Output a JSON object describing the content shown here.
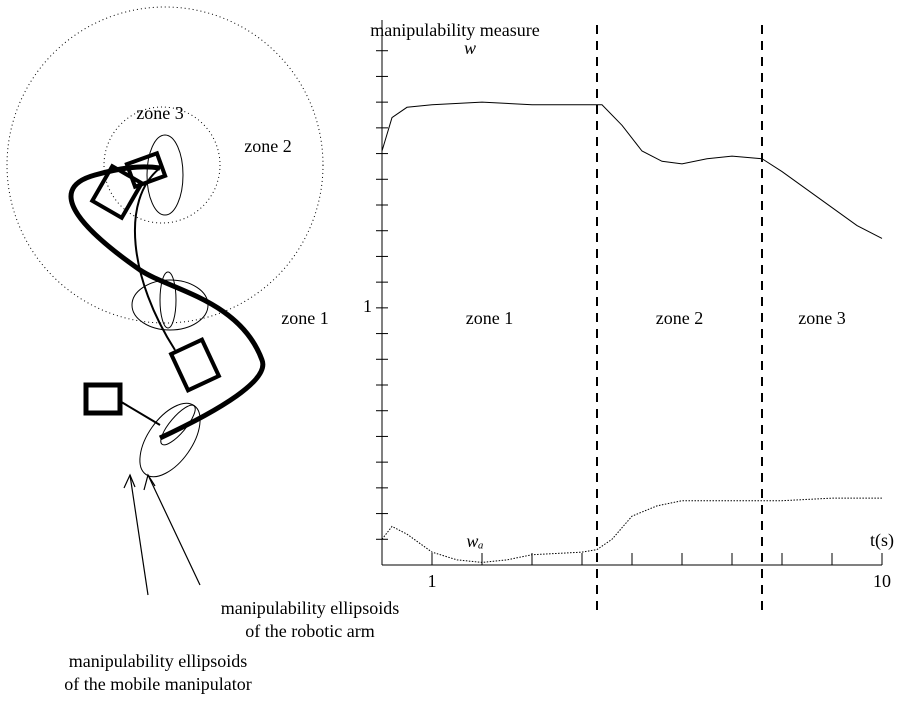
{
  "chart_data": {
    "type": "line",
    "y_label": "manipulability measure",
    "x_label": "t(s)",
    "xlim": [
      0,
      10
    ],
    "xticks": [
      1,
      10
    ],
    "x_minor_ticks": [
      2,
      3,
      4,
      5,
      6,
      7,
      8,
      9
    ],
    "ylim": [
      0,
      2.1
    ],
    "yticks": [
      1
    ],
    "y_minor_ticks": [
      0.1,
      0.2,
      0.3,
      0.4,
      0.5,
      0.6,
      0.7,
      0.8,
      0.9,
      1.1,
      1.2,
      1.3,
      1.4,
      1.5,
      1.6,
      1.7,
      1.8,
      1.9,
      2.0
    ],
    "zone_bounds": [
      4.3,
      7.6
    ],
    "zones": [
      "zone 1",
      "zone 2",
      "zone 3"
    ],
    "series": [
      {
        "name": "w",
        "color": "#000000",
        "x": [
          0,
          0.2,
          0.5,
          1,
          2,
          3,
          4,
          4.4,
          4.8,
          5.2,
          5.6,
          6,
          6.5,
          7,
          7.6,
          8,
          8.5,
          9,
          9.5,
          10
        ],
        "values": [
          1.61,
          1.74,
          1.78,
          1.79,
          1.8,
          1.79,
          1.79,
          1.79,
          1.71,
          1.61,
          1.57,
          1.56,
          1.58,
          1.59,
          1.58,
          1.53,
          1.46,
          1.39,
          1.32,
          1.27
        ]
      },
      {
        "name": "wₐ",
        "color": "#000000",
        "x": [
          0,
          0.2,
          0.5,
          1,
          1.5,
          2,
          2.5,
          3,
          4,
          4.3,
          4.6,
          5,
          5.5,
          6,
          7,
          8,
          9,
          10
        ],
        "values": [
          0.1,
          0.15,
          0.12,
          0.05,
          0.02,
          0.01,
          0.02,
          0.04,
          0.05,
          0.06,
          0.1,
          0.19,
          0.23,
          0.25,
          0.25,
          0.25,
          0.26,
          0.26
        ]
      }
    ]
  },
  "diagram": {
    "zone_labels": [
      "zone 3",
      "zone 2",
      "zone 1"
    ],
    "arm_note": [
      "manipulability ellipsoids",
      "of the robotic arm"
    ],
    "mobile_note": [
      "manipulability ellipsoids",
      "of the mobile manipulator"
    ]
  }
}
